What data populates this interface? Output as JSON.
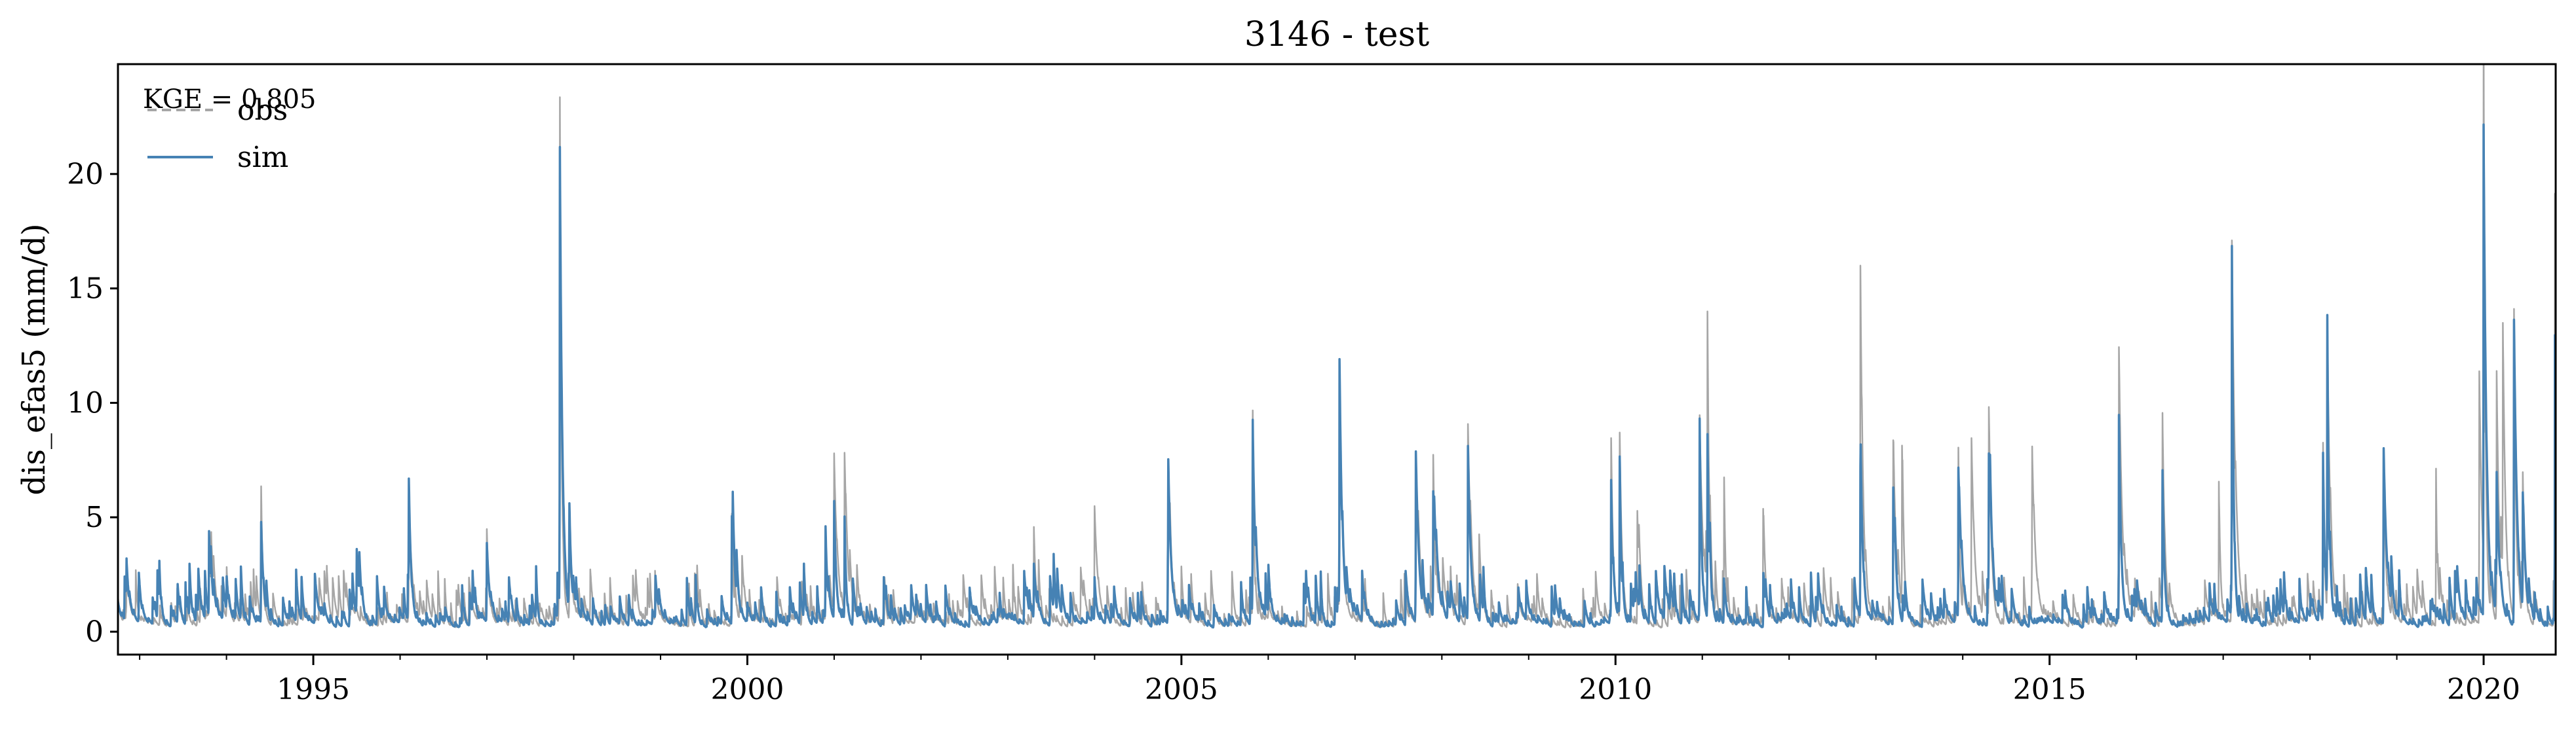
{
  "chart_data": {
    "type": "line",
    "title": "3146 - test",
    "xlabel": "",
    "ylabel": "dis_efas5 (mm/d)",
    "annotation": "KGE = 0.805",
    "xlim": [
      1992.75,
      2020.83
    ],
    "ylim": [
      -1.0,
      24.8
    ],
    "grid": false,
    "legend_position": "top-left",
    "x_ticks": [
      1995,
      2000,
      2005,
      2010,
      2015,
      2020
    ],
    "x_tick_labels": [
      "1995",
      "2000",
      "2005",
      "2010",
      "2015",
      "2020"
    ],
    "y_ticks": [
      0,
      5,
      10,
      15,
      20
    ],
    "y_tick_labels": [
      "0",
      "5",
      "10",
      "15",
      "20"
    ],
    "series": [
      {
        "name": "obs",
        "color": "#a6a6a6",
        "style": "dashed",
        "peaks": [
          [
            1992.85,
            1.7
          ],
          [
            1993.8,
            3.5
          ],
          [
            1994.4,
            4.3
          ],
          [
            1996.1,
            5.2
          ],
          [
            1997.0,
            3.0
          ],
          [
            1997.84,
            22.2
          ],
          [
            1997.95,
            4.2
          ],
          [
            1999.82,
            4.7
          ],
          [
            2000.9,
            3.0
          ],
          [
            2001.0,
            6.8
          ],
          [
            2001.12,
            7.0
          ],
          [
            2003.3,
            3.9
          ],
          [
            2004.0,
            4.5
          ],
          [
            2004.85,
            5.2
          ],
          [
            2005.82,
            9.0
          ],
          [
            2006.82,
            10.8
          ],
          [
            2007.7,
            7.2
          ],
          [
            2007.9,
            6.7
          ],
          [
            2008.3,
            8.6
          ],
          [
            2008.43,
            3.4
          ],
          [
            2009.95,
            7.8
          ],
          [
            2010.05,
            8.1
          ],
          [
            2010.25,
            5.0
          ],
          [
            2010.97,
            9.0
          ],
          [
            2011.06,
            11.0
          ],
          [
            2011.25,
            5.3
          ],
          [
            2011.7,
            5.0
          ],
          [
            2012.82,
            15.5
          ],
          [
            2013.2,
            7.7
          ],
          [
            2013.3,
            7.0
          ],
          [
            2013.95,
            7.4
          ],
          [
            2014.1,
            7.8
          ],
          [
            2014.3,
            9.1
          ],
          [
            2014.8,
            6.9
          ],
          [
            2015.8,
            10.7
          ],
          [
            2016.3,
            8.2
          ],
          [
            2016.95,
            6.0
          ],
          [
            2017.1,
            16.2
          ],
          [
            2018.15,
            7.8
          ],
          [
            2018.2,
            12.4
          ],
          [
            2018.85,
            6.5
          ],
          [
            2019.45,
            6.9
          ],
          [
            2019.95,
            11.0
          ],
          [
            2020.0,
            23.8
          ],
          [
            2020.15,
            10.8
          ],
          [
            2020.22,
            11.0
          ],
          [
            2020.35,
            13.3
          ],
          [
            2020.45,
            5.1
          ],
          [
            2020.82,
            17.9
          ]
        ]
      },
      {
        "name": "sim",
        "color": "#4682b4",
        "style": "solid",
        "peaks": [
          [
            1992.85,
            1.7
          ],
          [
            1993.8,
            3.7
          ],
          [
            1994.4,
            4.4
          ],
          [
            1995.5,
            2.8
          ],
          [
            1996.1,
            4.9
          ],
          [
            1997.0,
            2.8
          ],
          [
            1997.84,
            20.0
          ],
          [
            1997.95,
            3.5
          ],
          [
            1999.82,
            4.7
          ],
          [
            2000.9,
            2.5
          ],
          [
            2001.0,
            4.8
          ],
          [
            2001.12,
            4.5
          ],
          [
            2003.3,
            2.4
          ],
          [
            2004.85,
            5.1
          ],
          [
            2005.82,
            8.5
          ],
          [
            2006.82,
            10.8
          ],
          [
            2007.7,
            7.2
          ],
          [
            2007.9,
            5.5
          ],
          [
            2008.3,
            7.6
          ],
          [
            2009.95,
            6.0
          ],
          [
            2010.05,
            6.8
          ],
          [
            2010.97,
            8.7
          ],
          [
            2011.06,
            8.0
          ],
          [
            2012.82,
            6.1
          ],
          [
            2013.2,
            6.0
          ],
          [
            2013.95,
            6.5
          ],
          [
            2014.3,
            6.2
          ],
          [
            2015.8,
            9.0
          ],
          [
            2016.3,
            5.9
          ],
          [
            2017.1,
            15.5
          ],
          [
            2018.15,
            7.3
          ],
          [
            2018.2,
            12.5
          ],
          [
            2018.85,
            6.1
          ],
          [
            2020.0,
            21.5
          ],
          [
            2020.15,
            5.2
          ],
          [
            2020.35,
            13.3
          ],
          [
            2020.45,
            5.0
          ],
          [
            2020.82,
            12.5
          ]
        ]
      }
    ]
  }
}
